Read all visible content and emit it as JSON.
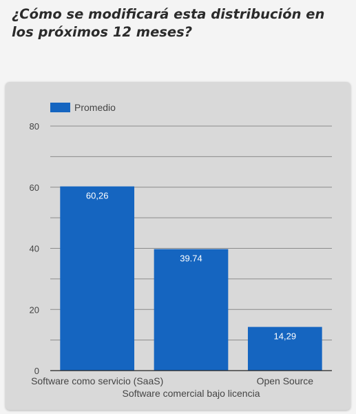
{
  "question": "¿Cómo se modificará esta distribución en los próximos 12 meses?",
  "colors": {
    "bar": "#1565c0",
    "grid": "#8a8a8a",
    "card": "#d9d9d9"
  },
  "chart_data": {
    "type": "bar",
    "title": "",
    "xlabel": "",
    "ylabel": "",
    "ylim": [
      0,
      80
    ],
    "yticks": [
      0,
      20,
      40,
      60,
      80
    ],
    "grid": true,
    "legend_position": "top-left",
    "categories": [
      "Software como servicio (SaaS)",
      "Software comercial bajo licencia",
      "Open Source"
    ],
    "series": [
      {
        "name": "Promedio",
        "values": [
          60.26,
          39.74,
          14.29
        ],
        "labels": [
          "60,26",
          "39.74",
          "14,29"
        ]
      }
    ]
  }
}
